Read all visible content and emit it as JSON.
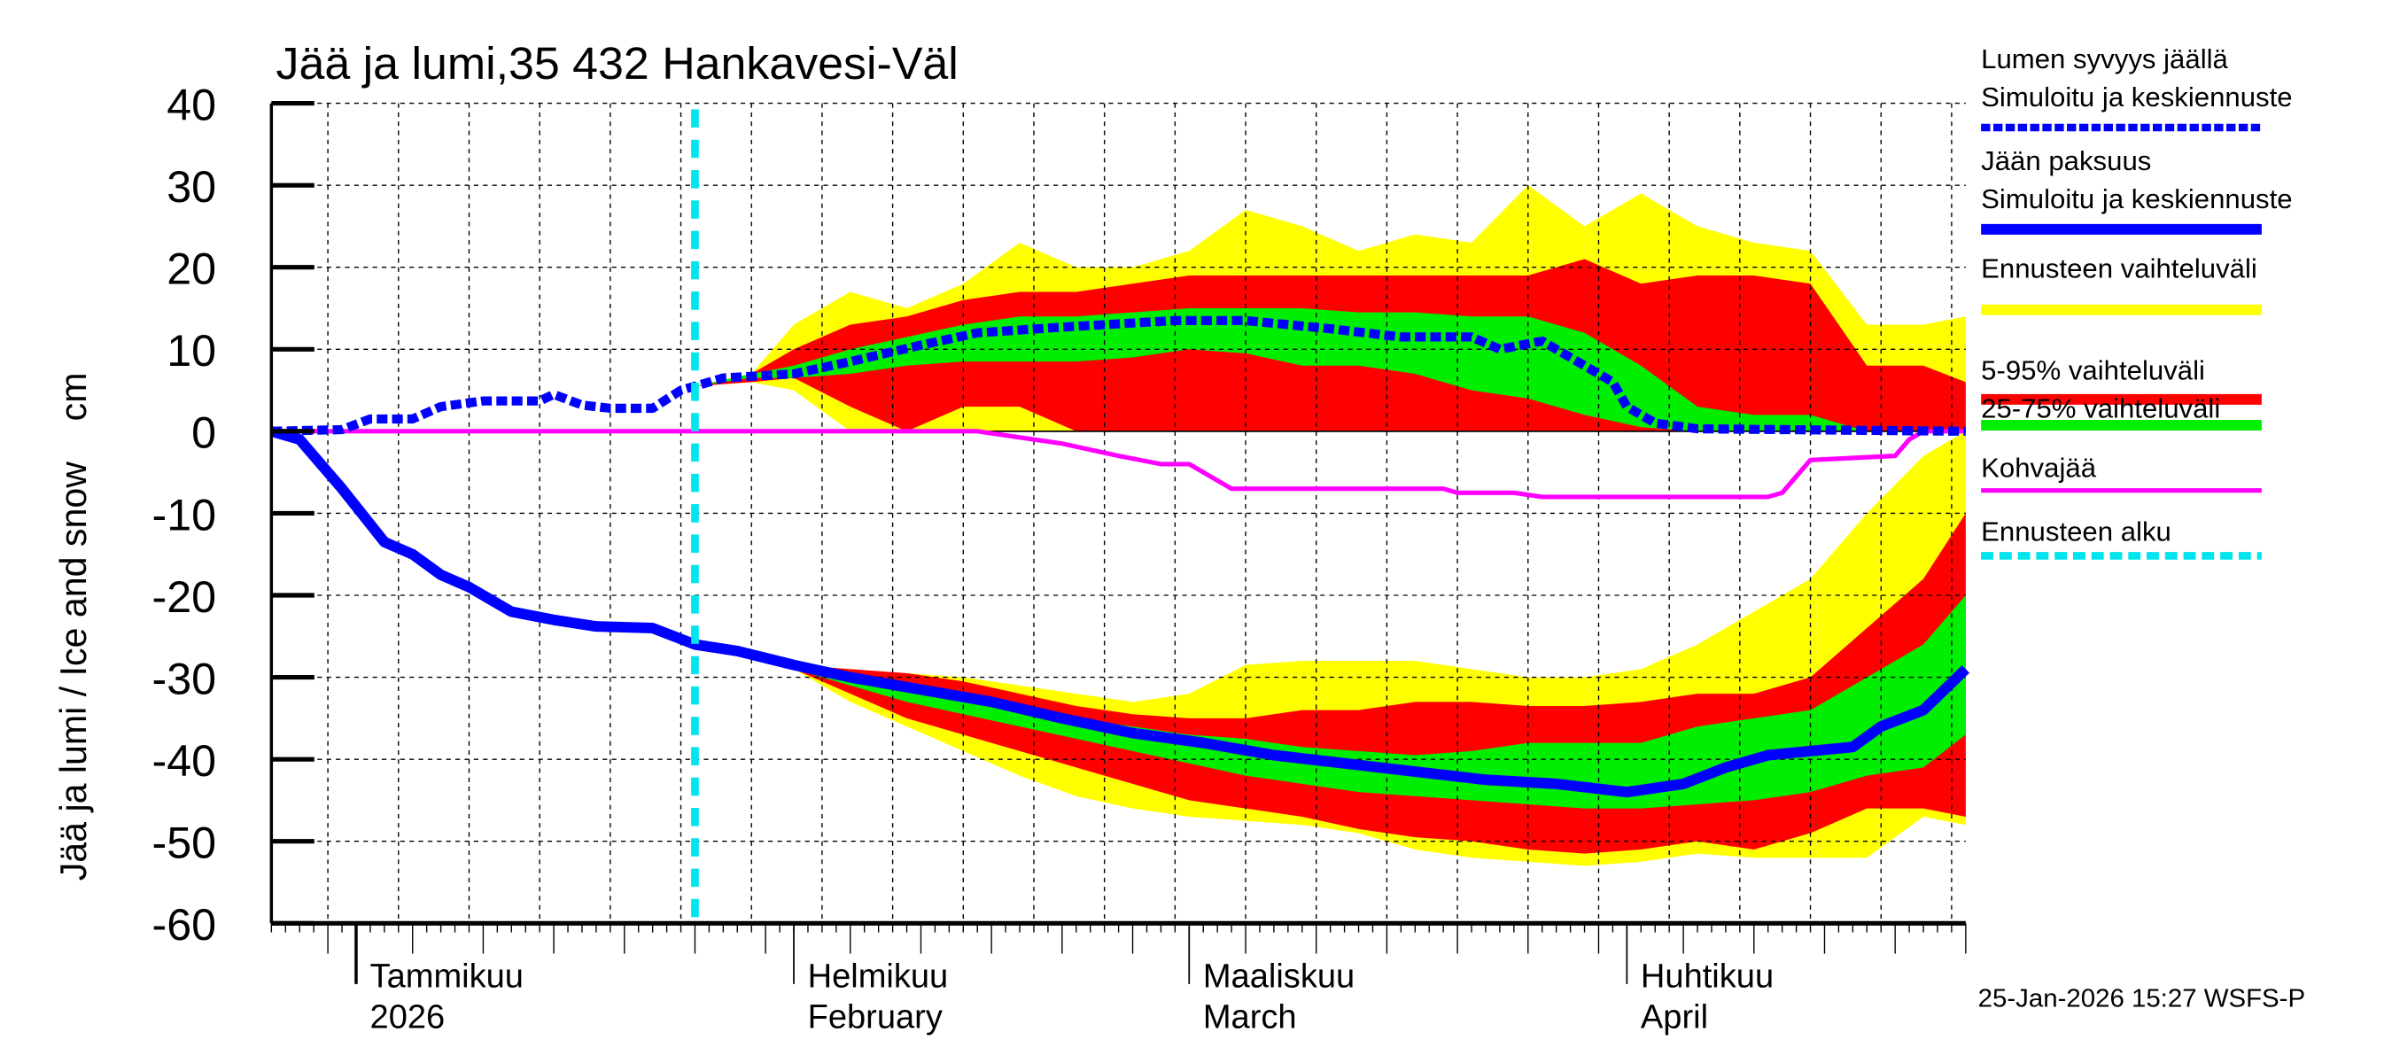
{
  "chart_data": {
    "type": "area",
    "title": "Jää ja lumi,35 432 Hankavesi-Väl",
    "ylabel": "Jää ja lumi / Ice and snow    cm",
    "xlabel": "",
    "ylim": [
      -60,
      40
    ],
    "yticks": [
      "40",
      "30",
      "20",
      "10",
      "0",
      "-10",
      "-20",
      "-30",
      "-40",
      "-50",
      "-60"
    ],
    "xlim": [
      "2025-12-26",
      "2026-04-25"
    ],
    "grid": true,
    "legend_position": "right",
    "month_labels": [
      {
        "date": "2026-01-01",
        "fi": "Tammikuu",
        "en": "2026"
      },
      {
        "date": "2026-02-01",
        "fi": "Helmikuu",
        "en": "February"
      },
      {
        "date": "2026-03-01",
        "fi": "Maaliskuu",
        "en": "March"
      },
      {
        "date": "2026-04-01",
        "fi": "Huhtikuu",
        "en": "April"
      }
    ],
    "forecast_start": "2026-01-25",
    "colors": {
      "snow": "#0000ff",
      "ice": "#0000ff",
      "range": "#ffff00",
      "p5_95": "#ff0000",
      "p25_75": "#00ee00",
      "slush": "#ff00ff",
      "forecast_start": "#00e5ee"
    },
    "snow_depth": {
      "x": [
        "2025-12-26",
        "2025-12-31",
        "2026-01-02",
        "2026-01-05",
        "2026-01-07",
        "2026-01-10",
        "2026-01-14",
        "2026-01-15",
        "2026-01-17",
        "2026-01-19",
        "2026-01-22",
        "2026-01-24",
        "2026-01-25",
        "2026-01-27",
        "2026-02-01",
        "2026-02-05",
        "2026-02-10",
        "2026-02-14",
        "2026-02-20",
        "2026-02-28",
        "2026-03-05",
        "2026-03-11",
        "2026-03-16",
        "2026-03-21",
        "2026-03-23",
        "2026-03-26",
        "2026-03-29",
        "2026-03-31",
        "2026-04-01",
        "2026-04-03",
        "2026-04-06",
        "2026-04-25"
      ],
      "y": [
        0,
        0.2,
        1.5,
        1.5,
        3,
        3.7,
        3.7,
        4.5,
        3.2,
        2.8,
        2.8,
        5,
        5.5,
        6.5,
        7,
        8.5,
        10.5,
        12,
        12.7,
        13.5,
        13.5,
        12.5,
        11.5,
        11.5,
        10,
        11,
        8,
        6,
        3,
        1,
        0.3,
        0
      ]
    },
    "ice_thickness": {
      "x": [
        "2025-12-26",
        "2025-12-28",
        "2025-12-31",
        "2026-01-03",
        "2026-01-05",
        "2026-01-07",
        "2026-01-09",
        "2026-01-12",
        "2026-01-15",
        "2026-01-18",
        "2026-01-22",
        "2026-01-25",
        "2026-01-28",
        "2026-02-01",
        "2026-02-05",
        "2026-02-10",
        "2026-02-15",
        "2026-02-20",
        "2026-02-25",
        "2026-03-02",
        "2026-03-07",
        "2026-03-12",
        "2026-03-17",
        "2026-03-22",
        "2026-03-27",
        "2026-04-01",
        "2026-04-05",
        "2026-04-08",
        "2026-04-11",
        "2026-04-14",
        "2026-04-17",
        "2026-04-19",
        "2026-04-22",
        "2026-04-25"
      ],
      "y": [
        0,
        -1,
        -7,
        -13.5,
        -15,
        -17.5,
        -19,
        -22,
        -23,
        -23.8,
        -24,
        -26,
        -26.8,
        -28.5,
        -30,
        -31.5,
        -33,
        -35,
        -36.8,
        -38,
        -39.5,
        -40.5,
        -41.5,
        -42.5,
        -43,
        -44,
        -43,
        -41,
        -39.5,
        -39,
        -38.5,
        -36,
        -34,
        -29
      ]
    },
    "snow_bands": {
      "x": [
        "2026-01-25",
        "2026-01-29",
        "2026-02-01",
        "2026-02-05",
        "2026-02-09",
        "2026-02-13",
        "2026-02-17",
        "2026-02-21",
        "2026-02-25",
        "2026-03-01",
        "2026-03-05",
        "2026-03-09",
        "2026-03-13",
        "2026-03-17",
        "2026-03-21",
        "2026-03-25",
        "2026-03-29",
        "2026-04-02",
        "2026-04-06",
        "2026-04-10",
        "2026-04-14",
        "2026-04-18",
        "2026-04-22",
        "2026-04-25"
      ],
      "range_hi": [
        5.5,
        7,
        13,
        17,
        15,
        18,
        23,
        20,
        20,
        22,
        27,
        25,
        22,
        24,
        23,
        30,
        25,
        29,
        25,
        23,
        22,
        13,
        13,
        14
      ],
      "p95": [
        5.5,
        7,
        10,
        13,
        14,
        16,
        17,
        17,
        18,
        19,
        19,
        19,
        19,
        19,
        19,
        19,
        21,
        18,
        19,
        19,
        18,
        8,
        8,
        6
      ],
      "p75": [
        5.5,
        7,
        8,
        10,
        11.5,
        13,
        14,
        14,
        14.5,
        15,
        15,
        15,
        14.5,
        14.5,
        14,
        14,
        12,
        8,
        3,
        2,
        2,
        0,
        0,
        0
      ],
      "p25": [
        5.5,
        6.5,
        6.5,
        7,
        8,
        8.5,
        8.5,
        8.5,
        9,
        10,
        9.5,
        8,
        8,
        7,
        5,
        4,
        2,
        0.5,
        0,
        0,
        0,
        0,
        0,
        0
      ],
      "p5": [
        5.5,
        6,
        6.5,
        3,
        0,
        3,
        3,
        0,
        0,
        0,
        0,
        0,
        0,
        0,
        0,
        0,
        0,
        0,
        0,
        0,
        0,
        0,
        0,
        0
      ],
      "range_lo": [
        5.5,
        6,
        5,
        0,
        0,
        0,
        0,
        0,
        0,
        0,
        0,
        0,
        0,
        0,
        0,
        0,
        0,
        0,
        0,
        0,
        0,
        0,
        0,
        0
      ]
    },
    "ice_bands": {
      "x": [
        "2026-02-01",
        "2026-02-05",
        "2026-02-09",
        "2026-02-13",
        "2026-02-17",
        "2026-02-21",
        "2026-02-25",
        "2026-03-01",
        "2026-03-05",
        "2026-03-09",
        "2026-03-13",
        "2026-03-17",
        "2026-03-21",
        "2026-03-25",
        "2026-03-29",
        "2026-04-02",
        "2026-04-06",
        "2026-04-10",
        "2026-04-14",
        "2026-04-18",
        "2026-04-22",
        "2026-04-25"
      ],
      "range_hi": [
        -28.5,
        -29,
        -29.5,
        -30,
        -31,
        -32,
        -33,
        -32,
        -28.5,
        -28,
        -28,
        -28,
        -29,
        -30,
        -30,
        -29,
        -26,
        -22,
        -18,
        -10,
        -3,
        0
      ],
      "p95": [
        -28.5,
        -29,
        -29.5,
        -30.5,
        -32,
        -33.5,
        -34.5,
        -35,
        -35,
        -34,
        -34,
        -33,
        -33,
        -33.5,
        -33.5,
        -33,
        -32,
        -32,
        -30,
        -24,
        -18,
        -10
      ],
      "p75": [
        -28.5,
        -30,
        -31,
        -32,
        -33.5,
        -35,
        -36,
        -37,
        -37.5,
        -38.5,
        -39,
        -39.5,
        -39,
        -38,
        -38,
        -38,
        -36,
        -35,
        -34,
        -30,
        -26,
        -20
      ],
      "p25": [
        -29,
        -31,
        -33,
        -34.5,
        -36,
        -37.5,
        -39,
        -40.5,
        -42,
        -43,
        -44,
        -44.5,
        -45,
        -45.5,
        -46,
        -46,
        -45.5,
        -45,
        -44,
        -42,
        -41,
        -37
      ],
      "p5": [
        -29,
        -32,
        -35,
        -37,
        -39,
        -41,
        -43,
        -45,
        -46,
        -47,
        -48.5,
        -49.5,
        -50,
        -51,
        -51.5,
        -51,
        -50,
        -51,
        -49,
        -46,
        -46,
        -47
      ],
      "range_lo": [
        -29,
        -33,
        -36,
        -39,
        -42,
        -44.5,
        -46,
        -47,
        -47.5,
        -48,
        -49,
        -51,
        -52,
        -52.5,
        -53,
        -52.5,
        -51.5,
        -52,
        -52,
        -52,
        -47,
        -48
      ]
    },
    "slush_ice": {
      "x": [
        "2025-12-26",
        "2026-02-14",
        "2026-02-20",
        "2026-02-24",
        "2026-02-27",
        "2026-03-01",
        "2026-03-04",
        "2026-03-19",
        "2026-03-20",
        "2026-03-24",
        "2026-03-26",
        "2026-04-11",
        "2026-04-12",
        "2026-04-14",
        "2026-04-20",
        "2026-04-21",
        "2026-04-22",
        "2026-04-25"
      ],
      "y": [
        0,
        0,
        -1.5,
        -3,
        -4,
        -4,
        -7,
        -7,
        -7.5,
        -7.5,
        -8,
        -8,
        -7.5,
        -3.5,
        -3,
        -1,
        0,
        0
      ]
    },
    "legend": [
      {
        "label": "Lumen syvyys jäällä",
        "label2": "Simuloitu ja keskiennuste",
        "style": "snow"
      },
      {
        "label": "Jään paksuus",
        "label2": "Simuloitu ja keskiennuste",
        "style": "ice"
      },
      {
        "label": "Ennusteen vaihteluväli",
        "style": "range"
      },
      {
        "label": "5-95% vaihteluväli",
        "style": "p5_95"
      },
      {
        "label": "25-75% vaihteluväli",
        "style": "p25_75"
      },
      {
        "label": "Kohvajää",
        "style": "slush"
      },
      {
        "label": "Ennusteen alku",
        "style": "forecast_start"
      }
    ],
    "timestamp": "25-Jan-2026 15:27 WSFS-P"
  }
}
